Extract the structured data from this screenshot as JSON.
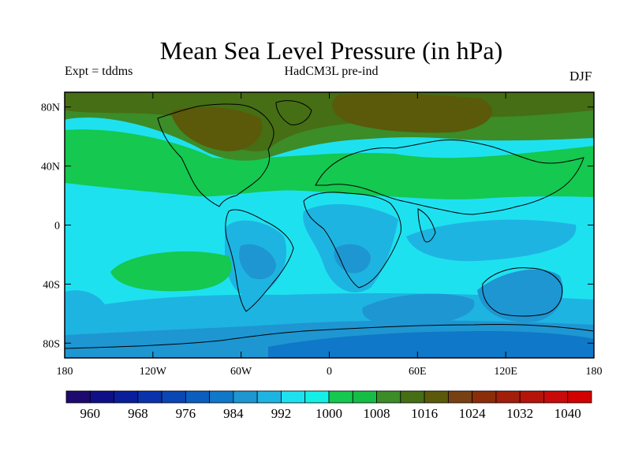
{
  "title": "Mean Sea Level Pressure (in hPa)",
  "subtitle_left": "Expt = tddms",
  "subtitle_center": "HadCM3L pre-ind",
  "subtitle_right": "DJF",
  "y_ticks": [
    "80N",
    "40N",
    "0",
    "40S",
    "80S"
  ],
  "x_ticks": [
    "180",
    "120W",
    "60W",
    "0",
    "60E",
    "120E",
    "180"
  ],
  "colorbar": {
    "levels": [
      960,
      964,
      968,
      972,
      976,
      980,
      984,
      988,
      992,
      996,
      1000,
      1004,
      1008,
      1012,
      1016,
      1020,
      1024,
      1028,
      1032,
      1036,
      1040
    ],
    "labels": [
      "960",
      "968",
      "976",
      "984",
      "992",
      "1000",
      "1008",
      "1016",
      "1024",
      "1032",
      "1040"
    ],
    "colors": [
      "#1e0a6e",
      "#0f0f87",
      "#0a1e9b",
      "#0a32aa",
      "#0a46b4",
      "#0a5fbe",
      "#0f78c8",
      "#1e96d2",
      "#1eb4e1",
      "#1ee1f0",
      "#14f0e6",
      "#14c850",
      "#14be46",
      "#3c8c28",
      "#466e14",
      "#5a5a0a",
      "#784114",
      "#8c2d0a",
      "#a01e0a",
      "#b4140a",
      "#c80a0a",
      "#d20000"
    ]
  },
  "colors": {
    "pole_north": "#5a5a0a",
    "mid_north": "#466e14",
    "band_1012": "#3c8c28",
    "band_1008": "#14c850",
    "band_1000": "#1ee1f0",
    "band_996": "#1eb4e1",
    "band_992": "#1e96d2",
    "band_988": "#0f78c8",
    "band_984": "#0a5fbe"
  }
}
